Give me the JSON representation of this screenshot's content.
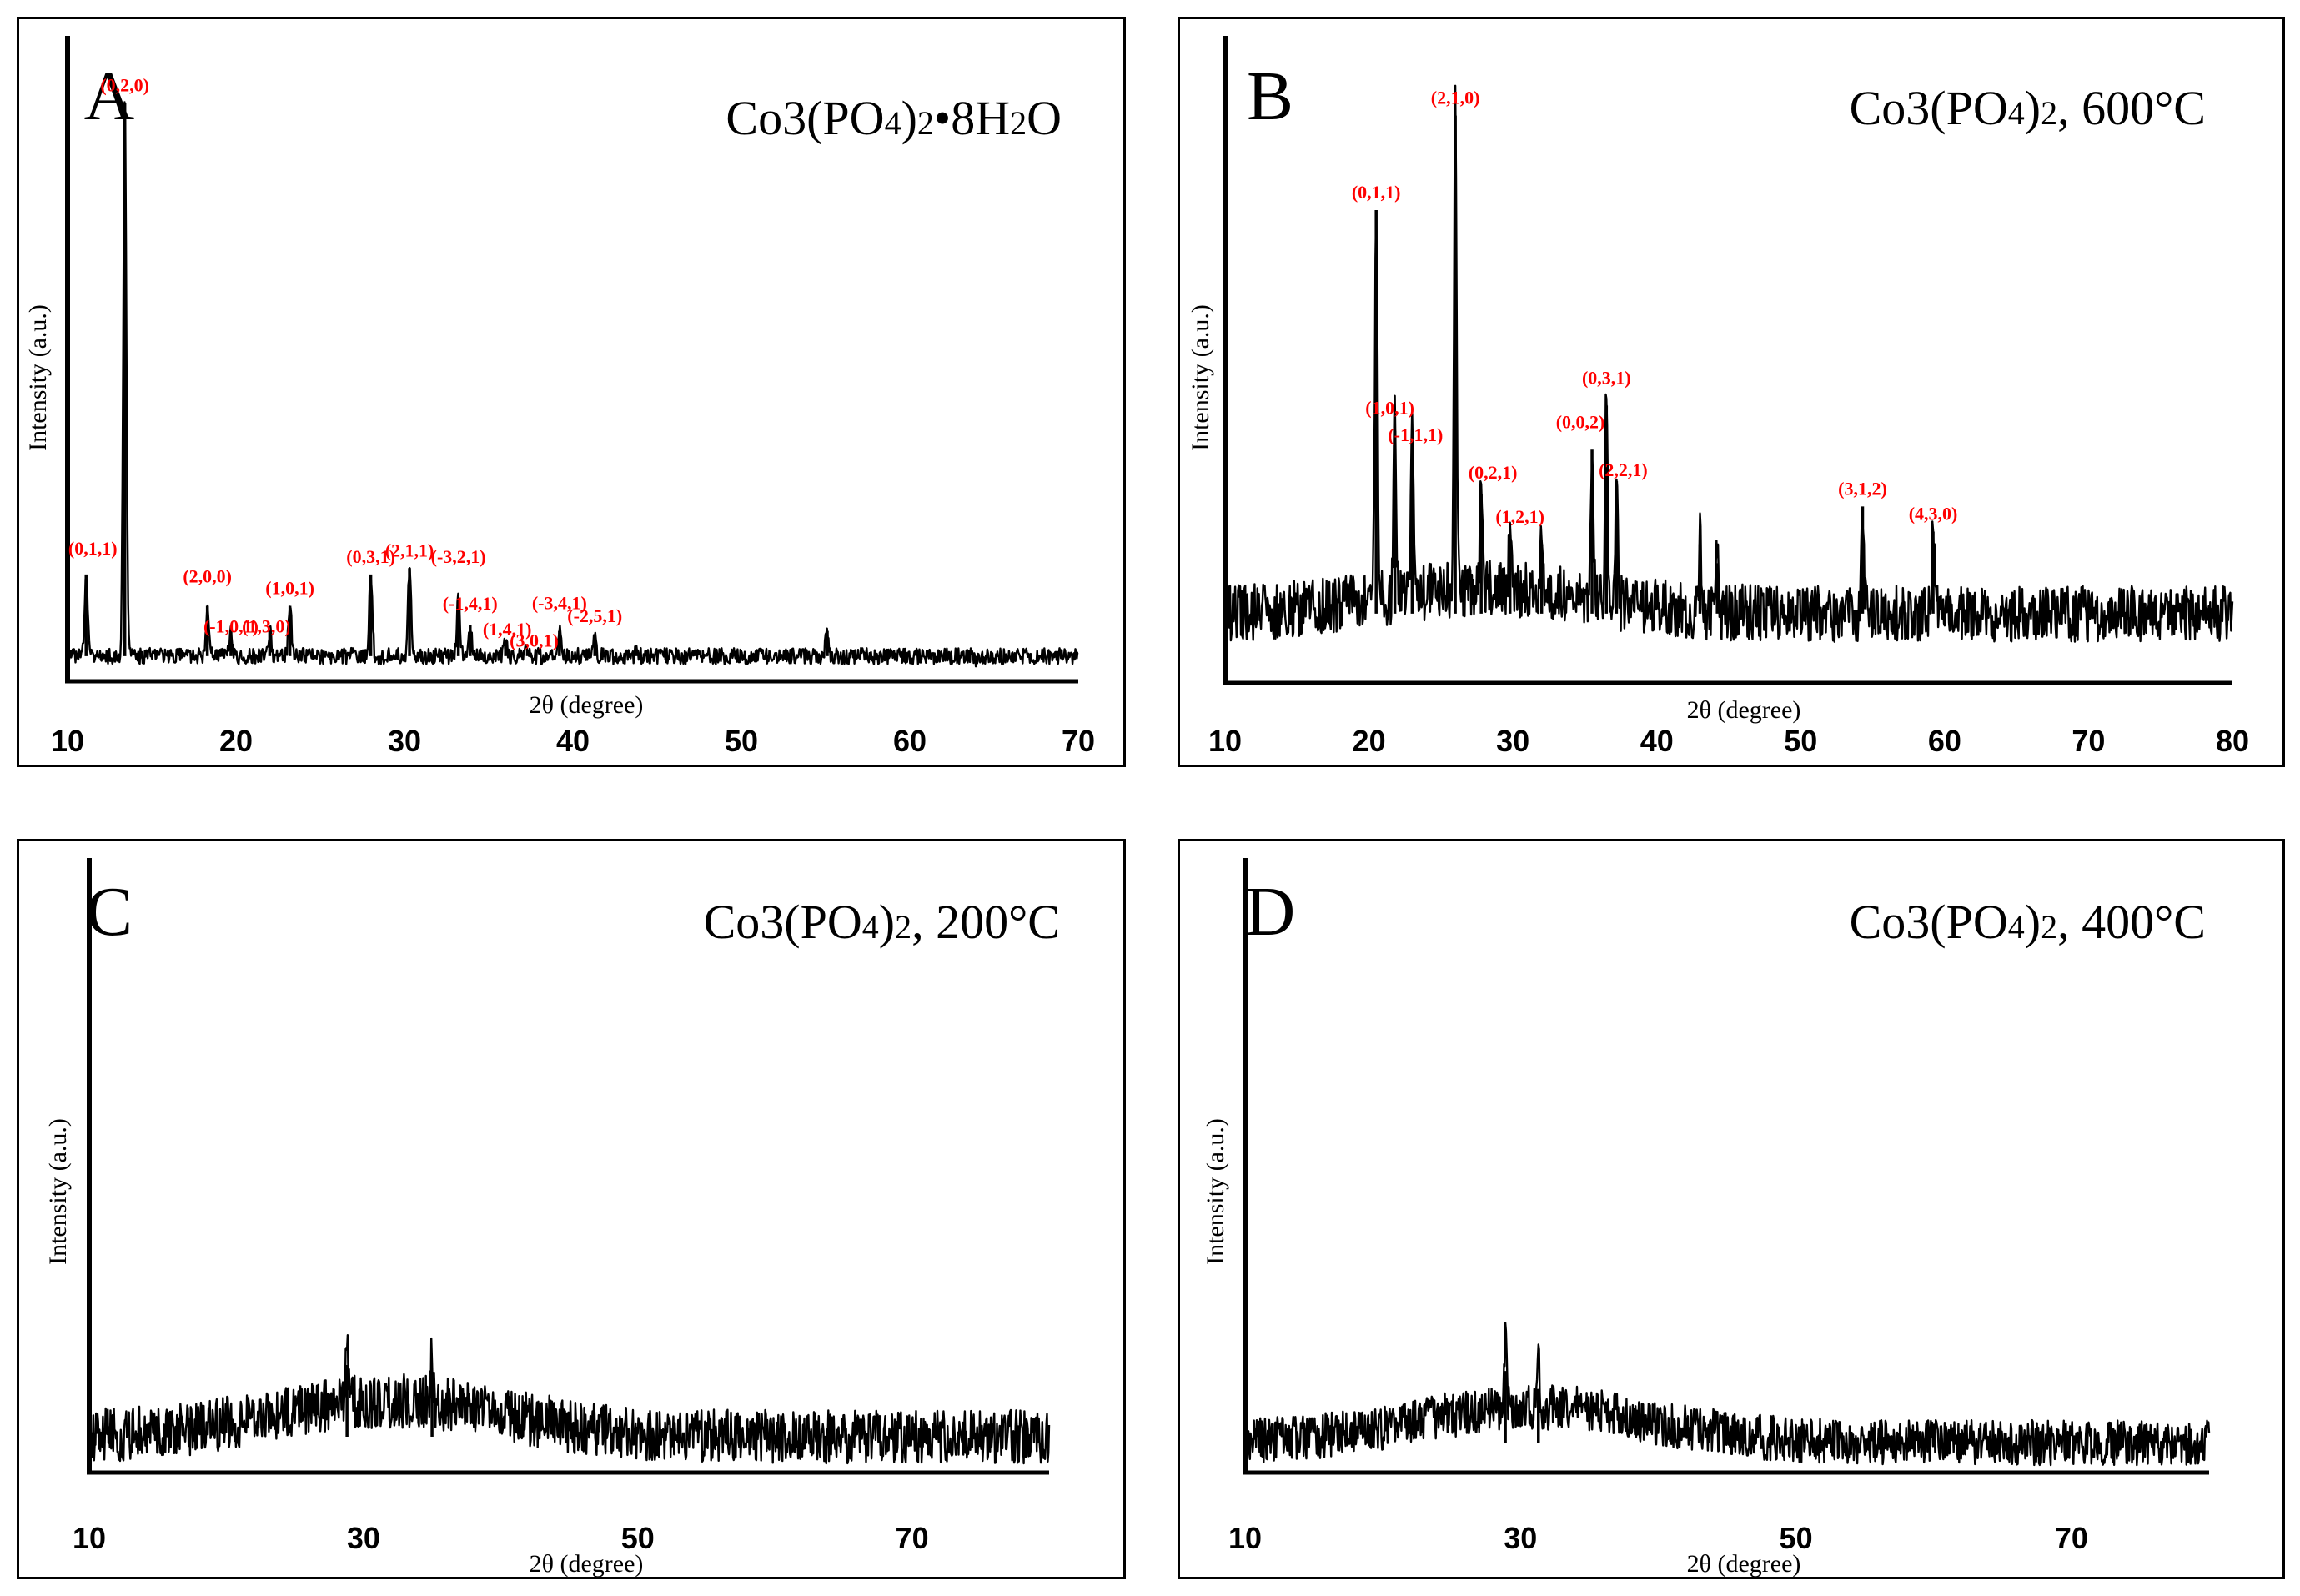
{
  "colors": {
    "line": "#000000",
    "peak_label": "#ff0000",
    "background": "#ffffff"
  },
  "chart_data": [
    {
      "type": "line",
      "panel": "A",
      "title": "Co3(PO4)2•8H2O",
      "title_parts": [
        "Co3(PO",
        "4",
        ")",
        "2",
        "•8H",
        "2",
        "O"
      ],
      "xlabel": "2θ (degree)",
      "ylabel": "Intensity (a.u.)",
      "xlim": [
        10,
        70
      ],
      "ylim": [
        0,
        100
      ],
      "xticks": [
        10,
        20,
        30,
        40,
        50,
        60,
        70
      ],
      "baseline": 4,
      "noise": 1.3,
      "hump": {
        "center": 0,
        "width": 0,
        "height": 0
      },
      "peaks": [
        {
          "x": 11.1,
          "y": 17,
          "label": "(0,1,1)"
        },
        {
          "x": 13.4,
          "y": 92,
          "label": "(0,2,0)"
        },
        {
          "x": 18.3,
          "y": 12,
          "label": "(2,0,0)"
        },
        {
          "x": 19.7,
          "y": 8,
          "label": "(-1,0,1)"
        },
        {
          "x": 22.0,
          "y": 8,
          "label": "(1,3,0)"
        },
        {
          "x": 23.2,
          "y": 12,
          "label": "(1,0,1)"
        },
        {
          "x": 28.0,
          "y": 17,
          "label": "(0,3,1)"
        },
        {
          "x": 30.3,
          "y": 18,
          "label": "(2,1,1)"
        },
        {
          "x": 33.2,
          "y": 13,
          "label": "(-3,2,1)"
        },
        {
          "x": 33.9,
          "y": 9,
          "label": "(-1,4,1)"
        },
        {
          "x": 36.0,
          "y": 6,
          "label": "(1,4,1)"
        },
        {
          "x": 37.3,
          "y": 5,
          "label": "(3,0,1)"
        },
        {
          "x": 39.2,
          "y": 8,
          "label": "(-3,4,1)"
        },
        {
          "x": 41.3,
          "y": 7,
          "label": "(-2,5,1)"
        },
        {
          "x": 43.8,
          "y": 5,
          "label": ""
        },
        {
          "x": 47.2,
          "y": 5,
          "label": ""
        },
        {
          "x": 55.1,
          "y": 8,
          "label": ""
        },
        {
          "x": 58.2,
          "y": 4,
          "label": ""
        },
        {
          "x": 64.0,
          "y": 3,
          "label": ""
        }
      ]
    },
    {
      "type": "line",
      "panel": "B",
      "title": "Co3(PO4)2, 600°C",
      "title_parts": [
        "Co3(PO",
        "4",
        ")",
        "2",
        ", 600°C"
      ],
      "xlabel": "2θ (degree)",
      "ylabel": "Intensity (a.u.)",
      "xlim": [
        10,
        80
      ],
      "ylim": [
        0,
        100
      ],
      "xticks": [
        10,
        20,
        30,
        40,
        50,
        60,
        70,
        80
      ],
      "baseline": 11,
      "noise": 4.5,
      "hump": {
        "center": 28,
        "width": 10,
        "height": 4
      },
      "peaks": [
        {
          "x": 20.5,
          "y": 75,
          "label": "(0,1,1)"
        },
        {
          "x": 21.8,
          "y": 40,
          "label": "(1,0,1)"
        },
        {
          "x": 23.0,
          "y": 36,
          "label": "(-1,1,1)"
        },
        {
          "x": 26.0,
          "y": 90,
          "label": "(2,1,0)"
        },
        {
          "x": 27.8,
          "y": 30,
          "label": "(0,2,1)"
        },
        {
          "x": 29.8,
          "y": 23,
          "label": "(1,2,1)"
        },
        {
          "x": 32.0,
          "y": 22,
          "label": ""
        },
        {
          "x": 35.5,
          "y": 37,
          "label": "(0,0,2)"
        },
        {
          "x": 36.5,
          "y": 44,
          "label": "(0,3,1)"
        },
        {
          "x": 37.2,
          "y": 32,
          "label": "(2,2,1)"
        },
        {
          "x": 43.0,
          "y": 22,
          "label": ""
        },
        {
          "x": 44.2,
          "y": 19,
          "label": ""
        },
        {
          "x": 54.3,
          "y": 28,
          "label": "(3,1,2)"
        },
        {
          "x": 59.2,
          "y": 24,
          "label": "(4,3,0)"
        }
      ]
    },
    {
      "type": "line",
      "panel": "C",
      "title": "Co3(PO4)2, 200°C",
      "title_parts": [
        "Co3(PO",
        "4",
        ")",
        "2",
        ", 200°C"
      ],
      "xlabel": "2θ (degree)",
      "ylabel": "Intensity (a.u.)",
      "xlim": [
        10,
        80
      ],
      "ylim": [
        0,
        100
      ],
      "xticks": [
        10,
        30,
        50,
        70
      ],
      "baseline": 6,
      "noise": 4.5,
      "hump": {
        "center": 32,
        "width": 12,
        "height": 6
      },
      "peaks": [
        {
          "x": 28.8,
          "y": 18,
          "label": ""
        },
        {
          "x": 35.0,
          "y": 14,
          "label": ""
        }
      ]
    },
    {
      "type": "line",
      "panel": "D",
      "title": "Co3(PO4)2, 400°C",
      "title_parts": [
        "Co3(PO",
        "4",
        ")",
        "2",
        ", 400°C"
      ],
      "xlabel": "2θ (degree)",
      "ylabel": "Intensity (a.u.)",
      "xlim": [
        10,
        80
      ],
      "ylim": [
        0,
        100
      ],
      "xticks": [
        10,
        30,
        50,
        70
      ],
      "baseline": 5,
      "noise": 3.8,
      "hump": {
        "center": 31,
        "width": 12,
        "height": 6
      },
      "peaks": [
        {
          "x": 28.9,
          "y": 17,
          "label": ""
        },
        {
          "x": 31.3,
          "y": 14,
          "label": ""
        }
      ]
    }
  ]
}
